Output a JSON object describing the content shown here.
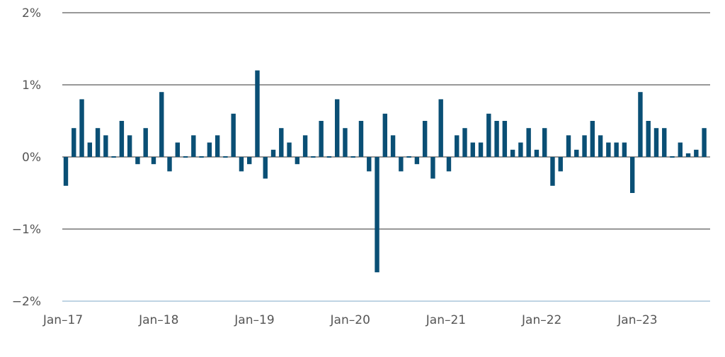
{
  "chart_data": {
    "type": "bar",
    "title": "",
    "xlabel": "",
    "ylabel": "",
    "ylim": [
      -2,
      2
    ],
    "y_ticks": [
      {
        "value": 2,
        "label": "2%"
      },
      {
        "value": 1,
        "label": "1%"
      },
      {
        "value": 0,
        "label": "0%"
      },
      {
        "value": -1,
        "label": "−1%"
      },
      {
        "value": -2,
        "label": "−2%"
      }
    ],
    "x_ticks": [
      {
        "date": "2017-01",
        "label": "Jan–17"
      },
      {
        "date": "2018-01",
        "label": "Jan–18"
      },
      {
        "date": "2019-01",
        "label": "Jan–19"
      },
      {
        "date": "2020-01",
        "label": "Jan–20"
      },
      {
        "date": "2021-01",
        "label": "Jan–21"
      },
      {
        "date": "2022-01",
        "label": "Jan–22"
      },
      {
        "date": "2023-01",
        "label": "Jan–23"
      }
    ],
    "grid": true,
    "legend": "none",
    "colors": {
      "bar": "#0a4f75",
      "gridline": "#5a5a5a",
      "bottom_line": "#aac6da",
      "tick_label": "#555555"
    },
    "dates": [
      "2017-01",
      "2017-02",
      "2017-03",
      "2017-04",
      "2017-05",
      "2017-06",
      "2017-07",
      "2017-08",
      "2017-09",
      "2017-10",
      "2017-11",
      "2017-12",
      "2018-01",
      "2018-02",
      "2018-03",
      "2018-04",
      "2018-05",
      "2018-06",
      "2018-07",
      "2018-08",
      "2018-09",
      "2018-10",
      "2018-11",
      "2018-12",
      "2019-01",
      "2019-02",
      "2019-03",
      "2019-04",
      "2019-05",
      "2019-06",
      "2019-07",
      "2019-08",
      "2019-09",
      "2019-10",
      "2019-11",
      "2019-12",
      "2020-01",
      "2020-02",
      "2020-03",
      "2020-04",
      "2020-05",
      "2020-06",
      "2020-07",
      "2020-08",
      "2020-09",
      "2020-10",
      "2020-11",
      "2020-12",
      "2021-01",
      "2021-02",
      "2021-03",
      "2021-04",
      "2021-05",
      "2021-06",
      "2021-07",
      "2021-08",
      "2021-09",
      "2021-10",
      "2021-11",
      "2021-12",
      "2022-01",
      "2022-02",
      "2022-03",
      "2022-04",
      "2022-05",
      "2022-06",
      "2022-07",
      "2022-08",
      "2022-09",
      "2022-10",
      "2022-11",
      "2022-12",
      "2023-01",
      "2023-02",
      "2023-03",
      "2023-04",
      "2023-05",
      "2023-06",
      "2023-07",
      "2023-08",
      "2023-09"
    ],
    "values": [
      -0.4,
      0.4,
      0.8,
      0.2,
      0.4,
      0.3,
      0.0,
      0.5,
      0.3,
      -0.1,
      0.4,
      -0.1,
      0.9,
      -0.2,
      0.2,
      0.0,
      0.3,
      0.0,
      0.2,
      0.3,
      0.0,
      0.6,
      -0.2,
      -0.1,
      1.2,
      -0.3,
      0.1,
      0.4,
      0.2,
      -0.1,
      0.3,
      0.0,
      0.5,
      0.0,
      0.8,
      0.4,
      0.0,
      0.5,
      -0.2,
      -1.6,
      0.6,
      0.3,
      -0.2,
      0.0,
      -0.1,
      0.5,
      -0.3,
      0.8,
      -0.2,
      0.3,
      0.4,
      0.2,
      0.2,
      0.6,
      0.5,
      0.5,
      0.1,
      0.2,
      0.4,
      0.1,
      0.4,
      -0.4,
      -0.2,
      0.3,
      0.1,
      0.3,
      0.5,
      0.3,
      0.2,
      0.2,
      0.2,
      -0.5,
      0.9,
      0.5,
      0.4,
      0.4,
      0.0,
      0.2,
      0.05,
      0.1,
      0.4
    ]
  }
}
